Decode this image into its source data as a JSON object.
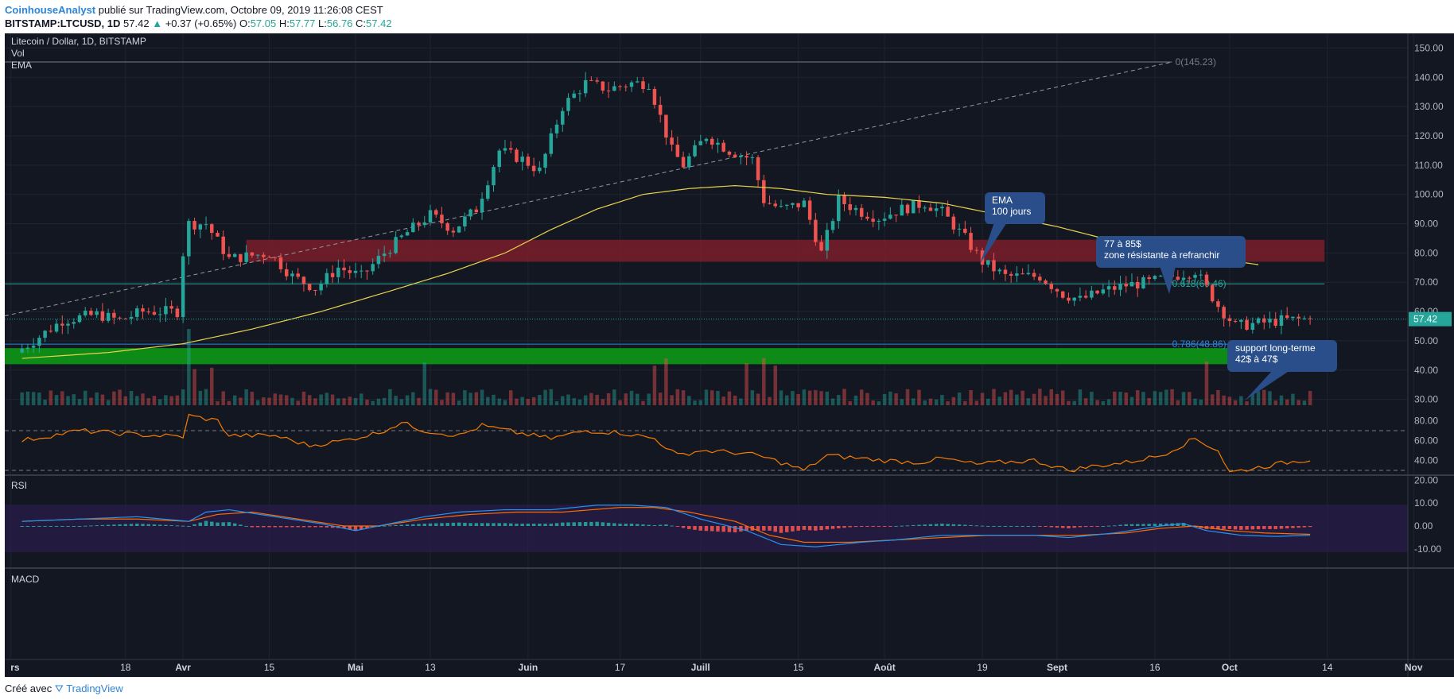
{
  "header": {
    "author": "CoinhouseAnalyst",
    "published": "publié sur TradingView.com, Octobre 09, 2019 11:26:08 CEST",
    "symbol": "BITSTAMP:LTCUSD, 1D",
    "last": "57.42",
    "change": "+0.37 (+0.65%)",
    "o_label": "O:",
    "o": "57.05",
    "h_label": "H:",
    "h": "57.77",
    "l_label": "L:",
    "l": "56.76",
    "c_label": "C:",
    "c": "57.42"
  },
  "footer": {
    "made_with": "Créé avec",
    "brand": "TradingView"
  },
  "legend": {
    "title": "Litecoin / Dollar, 1D, BITSTAMP",
    "vol": "Vol",
    "ema": "EMA",
    "rsi": "RSI",
    "macd": "MACD"
  },
  "colors": {
    "bg": "#131722",
    "up": "#26a69a",
    "down": "#ef5350",
    "ema": "#e8d44d",
    "resistance": "#7a1f2a",
    "support": "#0e8a16",
    "rsi": "#f57c00",
    "macd": "#2196f3",
    "signal": "#ff6d00",
    "callout": "#2a4e8a"
  },
  "price_axis": {
    "ticks": [
      "150.00",
      "140.00",
      "130.00",
      "120.00",
      "110.00",
      "100.00",
      "90.00",
      "80.00",
      "70.00",
      "60.00",
      "50.00",
      "40.00",
      "30.00"
    ],
    "last_label": "57.42"
  },
  "rsi_axis": {
    "ticks": [
      "80.00",
      "60.00",
      "40.00",
      "20.00"
    ]
  },
  "macd_axis": {
    "ticks": [
      "10.00",
      "0.00",
      "-10.00"
    ]
  },
  "time_axis": {
    "labels": [
      "rs",
      "18",
      "Avr",
      "15",
      "Mai",
      "13",
      "Juin",
      "17",
      "Juill",
      "15",
      "Août",
      "19",
      "Sept",
      "16",
      "Oct",
      "14",
      "Nov"
    ]
  },
  "annotations": {
    "fib0": "0(145.23)",
    "fib618": "0.618(69.46)",
    "fib786": "0.786(48.86)",
    "callout_ema_l1": "EMA",
    "callout_ema_l2": "100 jours",
    "callout_res_l1": "77 à 85$",
    "callout_res_l2": "zone résistante à refranchir",
    "callout_sup_l1": "support long-terme",
    "callout_sup_l2": "42$ à 47$"
  },
  "chart_data": {
    "type": "candlestick",
    "title": "Litecoin / Dollar, 1D, BITSTAMP",
    "price_range": [
      28,
      155
    ],
    "x_range_days": [
      -3,
      241
    ],
    "date_axis": {
      "first_label": "rs",
      "label_step_days": [
        18
      ]
    },
    "resistance_zone": [
      77,
      84.5
    ],
    "support_zone": [
      42,
      47.5
    ],
    "fibonacci": [
      {
        "level": "0",
        "price": 145.23
      },
      {
        "level": "0.618",
        "price": 69.46
      },
      {
        "level": "0.786",
        "price": 48.86
      }
    ],
    "price_keypoints": [
      [
        0,
        46
      ],
      [
        3,
        50
      ],
      [
        8,
        57
      ],
      [
        14,
        59
      ],
      [
        18,
        57
      ],
      [
        22,
        60
      ],
      [
        25,
        60
      ],
      [
        28,
        60
      ],
      [
        29,
        80
      ],
      [
        30,
        90
      ],
      [
        33,
        90
      ],
      [
        37,
        78
      ],
      [
        44,
        80
      ],
      [
        48,
        72
      ],
      [
        52,
        68
      ],
      [
        56,
        75
      ],
      [
        60,
        72
      ],
      [
        64,
        80
      ],
      [
        68,
        87
      ],
      [
        72,
        93
      ],
      [
        76,
        88
      ],
      [
        80,
        95
      ],
      [
        84,
        115
      ],
      [
        88,
        112
      ],
      [
        91,
        108
      ],
      [
        95,
        130
      ],
      [
        99,
        138
      ],
      [
        103,
        136
      ],
      [
        107,
        138
      ],
      [
        110,
        138
      ],
      [
        114,
        115
      ],
      [
        116,
        110
      ],
      [
        120,
        120
      ],
      [
        124,
        115
      ],
      [
        128,
        112
      ],
      [
        130,
        98
      ],
      [
        133,
        95
      ],
      [
        137,
        97
      ],
      [
        140,
        80
      ],
      [
        143,
        98
      ],
      [
        147,
        94
      ],
      [
        150,
        92
      ],
      [
        154,
        95
      ],
      [
        158,
        97
      ],
      [
        161,
        94
      ],
      [
        165,
        85
      ],
      [
        168,
        77
      ],
      [
        172,
        72
      ],
      [
        178,
        72
      ],
      [
        182,
        66
      ],
      [
        185,
        64
      ],
      [
        189,
        67
      ],
      [
        193,
        69
      ],
      [
        197,
        70
      ],
      [
        201,
        72
      ],
      [
        205,
        74
      ],
      [
        209,
        62
      ],
      [
        212,
        55
      ],
      [
        216,
        56
      ],
      [
        220,
        57
      ],
      [
        224,
        57.4
      ]
    ],
    "ema100_keypoints": [
      [
        0,
        44
      ],
      [
        15,
        46
      ],
      [
        28,
        49
      ],
      [
        40,
        54
      ],
      [
        52,
        60
      ],
      [
        64,
        67
      ],
      [
        74,
        73
      ],
      [
        84,
        80
      ],
      [
        92,
        88
      ],
      [
        100,
        95
      ],
      [
        108,
        100
      ],
      [
        116,
        102
      ],
      [
        124,
        103
      ],
      [
        132,
        102
      ],
      [
        140,
        100
      ],
      [
        150,
        99
      ],
      [
        160,
        97
      ],
      [
        170,
        93
      ],
      [
        180,
        89
      ],
      [
        190,
        84
      ],
      [
        200,
        81
      ],
      [
        208,
        78
      ],
      [
        215,
        76
      ]
    ],
    "rsi_keypoints": [
      [
        0,
        60
      ],
      [
        10,
        70
      ],
      [
        20,
        66
      ],
      [
        28,
        64
      ],
      [
        29,
        85
      ],
      [
        34,
        80
      ],
      [
        36,
        65
      ],
      [
        44,
        65
      ],
      [
        50,
        55
      ],
      [
        56,
        60
      ],
      [
        62,
        68
      ],
      [
        66,
        78
      ],
      [
        70,
        70
      ],
      [
        76,
        65
      ],
      [
        80,
        75
      ],
      [
        86,
        68
      ],
      [
        92,
        62
      ],
      [
        98,
        70
      ],
      [
        104,
        68
      ],
      [
        110,
        62
      ],
      [
        114,
        45
      ],
      [
        118,
        50
      ],
      [
        124,
        48
      ],
      [
        128,
        45
      ],
      [
        132,
        38
      ],
      [
        136,
        30
      ],
      [
        140,
        45
      ],
      [
        146,
        42
      ],
      [
        150,
        40
      ],
      [
        156,
        38
      ],
      [
        160,
        42
      ],
      [
        166,
        36
      ],
      [
        170,
        38
      ],
      [
        176,
        40
      ],
      [
        182,
        30
      ],
      [
        186,
        34
      ],
      [
        192,
        38
      ],
      [
        198,
        45
      ],
      [
        204,
        62
      ],
      [
        208,
        50
      ],
      [
        210,
        28
      ],
      [
        216,
        34
      ],
      [
        220,
        38
      ],
      [
        224,
        41
      ]
    ],
    "macd_keypoints": [
      [
        0,
        2
      ],
      [
        10,
        3
      ],
      [
        20,
        4
      ],
      [
        29,
        2
      ],
      [
        32,
        6
      ],
      [
        36,
        7
      ],
      [
        44,
        4
      ],
      [
        52,
        1
      ],
      [
        58,
        -2
      ],
      [
        64,
        1
      ],
      [
        70,
        4
      ],
      [
        76,
        6
      ],
      [
        84,
        7
      ],
      [
        92,
        7
      ],
      [
        100,
        9
      ],
      [
        106,
        9
      ],
      [
        112,
        8
      ],
      [
        118,
        3
      ],
      [
        126,
        -2
      ],
      [
        132,
        -8
      ],
      [
        138,
        -9
      ],
      [
        146,
        -7
      ],
      [
        152,
        -6
      ],
      [
        160,
        -4
      ],
      [
        168,
        -4
      ],
      [
        176,
        -4
      ],
      [
        182,
        -5
      ],
      [
        190,
        -3
      ],
      [
        198,
        0
      ],
      [
        202,
        1
      ],
      [
        206,
        -2
      ],
      [
        212,
        -4
      ],
      [
        218,
        -4.5
      ],
      [
        224,
        -4
      ]
    ],
    "signal_keypoints": [
      [
        0,
        2
      ],
      [
        10,
        3
      ],
      [
        20,
        3
      ],
      [
        29,
        2
      ],
      [
        34,
        5
      ],
      [
        40,
        6
      ],
      [
        48,
        3
      ],
      [
        56,
        0
      ],
      [
        62,
        0
      ],
      [
        70,
        3
      ],
      [
        78,
        5
      ],
      [
        86,
        6
      ],
      [
        94,
        6
      ],
      [
        104,
        8
      ],
      [
        110,
        8
      ],
      [
        116,
        6
      ],
      [
        124,
        2
      ],
      [
        130,
        -4
      ],
      [
        136,
        -7
      ],
      [
        144,
        -7
      ],
      [
        152,
        -6
      ],
      [
        160,
        -5
      ],
      [
        168,
        -4
      ],
      [
        176,
        -4
      ],
      [
        184,
        -4
      ],
      [
        192,
        -3
      ],
      [
        198,
        -1
      ],
      [
        204,
        0
      ],
      [
        210,
        -2
      ],
      [
        216,
        -3
      ],
      [
        224,
        -3.6
      ]
    ],
    "rsi_levels": [
      70,
      30
    ],
    "last_price": 57.42,
    "ohlc_last": {
      "open": 57.05,
      "high": 57.77,
      "low": 56.76,
      "close": 57.42
    }
  }
}
